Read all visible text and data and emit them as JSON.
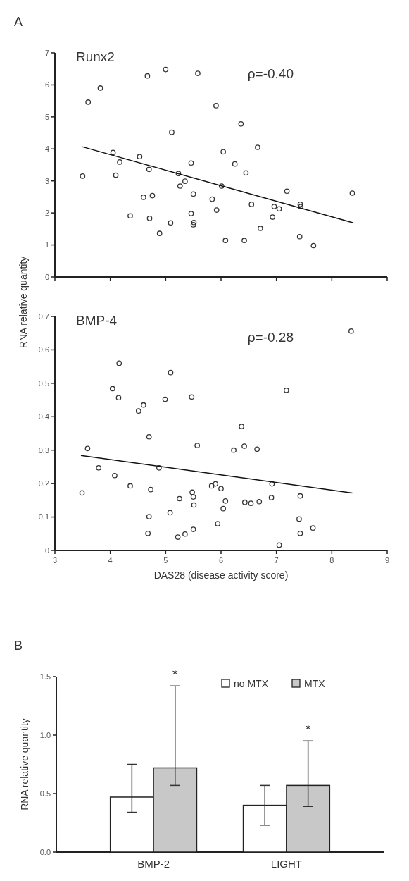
{
  "chart_data": [
    {
      "type": "scatter",
      "title": "Runx2",
      "annotations": [
        "A",
        "ρ=-0.40"
      ],
      "xlim": [
        3,
        9
      ],
      "xticks": [
        3,
        4,
        5,
        6,
        7,
        8,
        9
      ],
      "ylim": [
        0,
        7
      ],
      "yticks": [
        0,
        1,
        2,
        3,
        4,
        5,
        6,
        7
      ],
      "tick_labels": "y",
      "series": [
        {
          "marker": "circle",
          "color": "#333333",
          "x": [
            3.5,
            3.6,
            3.82,
            4.05,
            4.1,
            4.17,
            4.36,
            4.53,
            4.6,
            4.67,
            4.7,
            4.71,
            4.76,
            4.89,
            5.0,
            5.09,
            5.11,
            5.23,
            5.26,
            5.35,
            5.46,
            5.46,
            5.5,
            5.51,
            5.5,
            5.58,
            5.84,
            5.91,
            5.92,
            6.01,
            6.04,
            6.08,
            6.25,
            6.36,
            6.42,
            6.45,
            6.55,
            6.66,
            6.71,
            6.93,
            6.96,
            7.05,
            7.19,
            7.43,
            7.44,
            7.42,
            7.67,
            8.37
          ],
          "values": [
            3.15,
            5.46,
            5.9,
            3.89,
            3.18,
            3.59,
            1.91,
            3.76,
            2.49,
            6.28,
            3.36,
            1.83,
            2.54,
            1.36,
            6.48,
            1.69,
            4.52,
            3.23,
            2.84,
            2.99,
            3.56,
            1.98,
            2.59,
            1.7,
            1.63,
            6.36,
            2.43,
            5.35,
            2.09,
            2.84,
            3.91,
            1.14,
            3.53,
            4.78,
            1.14,
            3.25,
            2.27,
            4.05,
            1.52,
            1.87,
            2.2,
            2.13,
            2.68,
            2.27,
            2.2,
            1.26,
            0.98,
            2.62
          ]
        },
        {
          "type": "line",
          "color": "#111111",
          "x": [
            3.49,
            8.39
          ],
          "values": [
            4.07,
            1.69
          ]
        }
      ]
    },
    {
      "type": "scatter",
      "title": "BMP-4",
      "annotations": [
        "ρ=-0.28"
      ],
      "xlabel": "DAS28 (disease activity score)",
      "ylabel": "RNA relative quantity",
      "xlim": [
        3,
        9
      ],
      "xticks": [
        3,
        4,
        5,
        6,
        7,
        8,
        9
      ],
      "ylim": [
        0,
        0.7
      ],
      "yticks": [
        0,
        0.1,
        0.2,
        0.3,
        0.4,
        0.5,
        0.6,
        0.7
      ],
      "series": [
        {
          "marker": "circle",
          "color": "#333333",
          "x": [
            3.49,
            3.59,
            3.79,
            4.04,
            4.08,
            4.16,
            4.15,
            4.36,
            4.51,
            4.6,
            4.68,
            4.7,
            4.7,
            4.73,
            4.88,
            4.99,
            5.08,
            5.09,
            5.22,
            5.25,
            5.35,
            5.47,
            5.48,
            5.5,
            5.51,
            5.5,
            5.57,
            5.83,
            5.9,
            5.94,
            6.0,
            6.04,
            6.08,
            6.23,
            6.37,
            6.42,
            6.43,
            6.54,
            6.65,
            6.69,
            6.91,
            6.92,
            7.05,
            7.18,
            7.41,
            7.43,
            7.43,
            7.66,
            8.35
          ],
          "values": [
            0.172,
            0.305,
            0.247,
            0.484,
            0.224,
            0.56,
            0.457,
            0.193,
            0.417,
            0.435,
            0.051,
            0.34,
            0.101,
            0.182,
            0.247,
            0.452,
            0.113,
            0.532,
            0.04,
            0.155,
            0.049,
            0.459,
            0.174,
            0.16,
            0.136,
            0.063,
            0.314,
            0.193,
            0.199,
            0.08,
            0.185,
            0.125,
            0.148,
            0.3,
            0.371,
            0.312,
            0.144,
            0.141,
            0.303,
            0.146,
            0.158,
            0.199,
            0.016,
            0.479,
            0.094,
            0.051,
            0.163,
            0.067,
            0.656
          ]
        },
        {
          "type": "line",
          "color": "#111111",
          "x": [
            3.47,
            8.37
          ],
          "values": [
            0.284,
            0.172
          ]
        }
      ]
    },
    {
      "type": "bar",
      "annotations": [
        "B",
        "*",
        "*"
      ],
      "ylabel": "RNA relative quantity",
      "categories": [
        "BMP-2",
        "LIGHT"
      ],
      "ylim": [
        0,
        1.5
      ],
      "yticks": [
        {
          "value": 0,
          "label": "0.0"
        },
        {
          "value": 0.5,
          "label": "0.5"
        },
        {
          "value": 1,
          "label": "1.0"
        },
        {
          "value": 1.5,
          "label": "1.5"
        }
      ],
      "legend": "top right",
      "series": [
        {
          "name": "no MTX",
          "color": "#ffffff",
          "values": [
            0.47,
            0.4
          ],
          "errors": [
            [
              0.34,
              0.75
            ],
            [
              0.23,
              0.57
            ]
          ]
        },
        {
          "name": "MTX",
          "color": "#c8c8c8",
          "values": [
            0.72,
            0.57
          ],
          "errors": [
            [
              0.57,
              1.42
            ],
            [
              0.39,
              0.95
            ]
          ]
        }
      ]
    }
  ]
}
